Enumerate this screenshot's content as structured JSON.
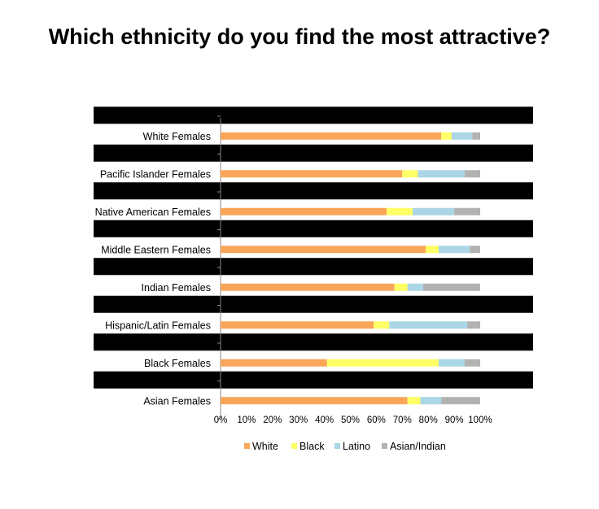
{
  "chart_data": {
    "type": "bar",
    "stacked": true,
    "orientation": "horizontal",
    "title": "Which ethnicity do you find the most attractive?",
    "categories": [
      "White Females",
      "Pacific Islander Females",
      "Native American Females",
      "Middle Eastern Females",
      "Indian Females",
      "Hispanic/Latin Females",
      "Black Females",
      "Asian Females"
    ],
    "series": [
      {
        "name": "White",
        "color": "#F9A65A",
        "values": [
          85,
          70,
          64,
          79,
          67,
          59,
          41,
          72
        ]
      },
      {
        "name": "Black",
        "color": "#FFFF66",
        "values": [
          4,
          6,
          10,
          5,
          5,
          6,
          43,
          5
        ]
      },
      {
        "name": "Latino",
        "color": "#AAD6E6",
        "values": [
          8,
          18,
          16,
          12,
          6,
          30,
          10,
          8
        ]
      },
      {
        "name": "Asian/Indian",
        "color": "#B2B2B2",
        "values": [
          3,
          6,
          10,
          4,
          22,
          5,
          6,
          15
        ]
      }
    ],
    "xticks": [
      "0%",
      "10%",
      "20%",
      "30%",
      "40%",
      "50%",
      "60%",
      "70%",
      "80%",
      "90%",
      "100%"
    ],
    "xlim": [
      0,
      100
    ],
    "legend_position": "bottom",
    "grid": false
  }
}
